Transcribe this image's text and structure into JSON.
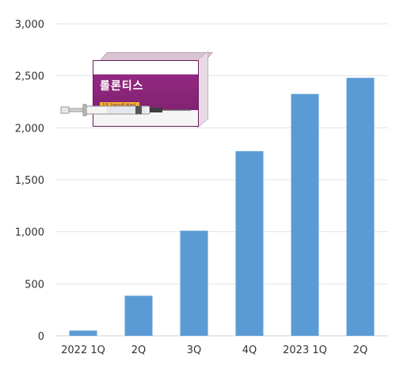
{
  "chart_data": {
    "type": "bar",
    "categories": [
      "2022  1Q",
      "2Q",
      "3Q",
      "4Q",
      "2023  1Q",
      "2Q"
    ],
    "values": [
      50,
      385,
      1010,
      1775,
      2325,
      2480
    ],
    "ylim": [
      0,
      3000
    ],
    "yticks": [
      "0",
      "500",
      "1,000",
      "1,500",
      "2,000",
      "2,500",
      "3,000"
    ],
    "ytick_values": [
      0,
      500,
      1000,
      1500,
      2000,
      2500,
      3000
    ],
    "grid": true,
    "bar_color": "#5b9bd5"
  },
  "product": {
    "icon": "drug-box-with-syringe",
    "brand": "롤론티스",
    "dose": "13.2mg/0.6mL",
    "box_color": "#8b2a7b"
  }
}
